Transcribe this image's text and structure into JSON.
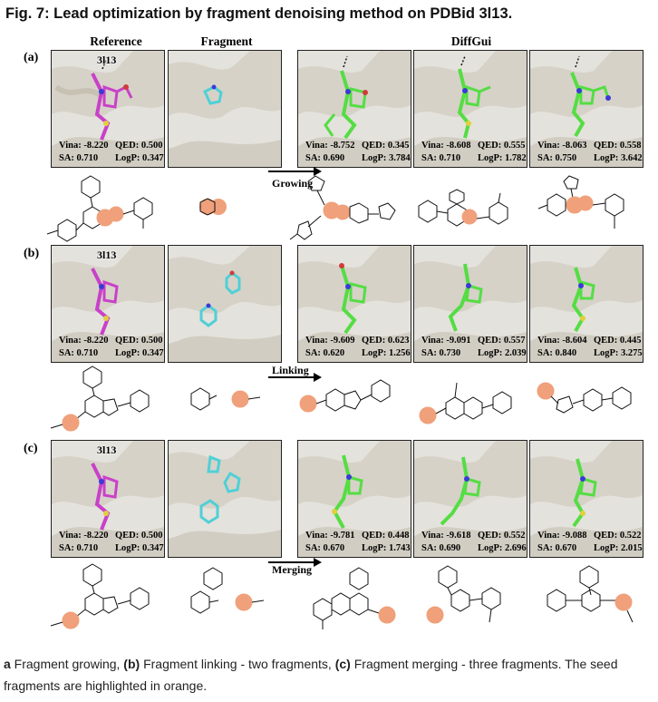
{
  "figure": {
    "title": "Fig. 7: Lead optimization by fragment denoising method on PDBid 3l13.",
    "column_headers": {
      "reference": "Reference",
      "fragment": "Fragment",
      "diffgui": "DiffGui"
    },
    "pdb_id": "3l13"
  },
  "rows": [
    {
      "label": "(a)",
      "method": "Growing",
      "reference": {
        "line1a": "Vina: -8.220",
        "line1b": "QED: 0.500",
        "line2a": "SA: 0.710",
        "line2b": "LogP: 0.347"
      },
      "generated": [
        {
          "line1a": "Vina: -8.752",
          "line1b": "QED: 0.345",
          "line2a": "SA: 0.690",
          "line2b": "LogP: 3.784"
        },
        {
          "line1a": "Vina: -8.608",
          "line1b": "QED: 0.555",
          "line2a": "SA: 0.710",
          "line2b": "LogP: 1.782"
        },
        {
          "line1a": "Vina: -8.063",
          "line1b": "QED: 0.558",
          "line2a": "SA: 0.750",
          "line2b": "LogP: 3.642"
        }
      ]
    },
    {
      "label": "(b)",
      "method": "Linking",
      "reference": {
        "line1a": "Vina: -8.220",
        "line1b": "QED: 0.500",
        "line2a": "SA: 0.710",
        "line2b": "LogP: 0.347"
      },
      "generated": [
        {
          "line1a": "Vina: -9.609",
          "line1b": "QED: 0.623",
          "line2a": "SA: 0.620",
          "line2b": "LogP: 1.256"
        },
        {
          "line1a": "Vina: -9.091",
          "line1b": "QED: 0.557",
          "line2a": "SA: 0.730",
          "line2b": "LogP: 2.039"
        },
        {
          "line1a": "Vina: -8.604",
          "line1b": "QED: 0.445",
          "line2a": "SA: 0.840",
          "line2b": "LogP: 3.275"
        }
      ]
    },
    {
      "label": "(c)",
      "method": "Merging",
      "reference": {
        "line1a": "Vina: -8.220",
        "line1b": "QED: 0.500",
        "line2a": "SA: 0.710",
        "line2b": "LogP: 0.347"
      },
      "generated": [
        {
          "line1a": "Vina: -9.781",
          "line1b": "QED: 0.448",
          "line2a": "SA: 0.670",
          "line2b": "LogP: 1.743"
        },
        {
          "line1a": "Vina: -9.618",
          "line1b": "QED: 0.552",
          "line2a": "SA: 0.690",
          "line2b": "LogP: 2.696"
        },
        {
          "line1a": "Vina: -9.088",
          "line1b": "QED: 0.522",
          "line2a": "SA: 0.670",
          "line2b": "LogP: 2.015"
        }
      ]
    }
  ],
  "caption": {
    "a_tag": "a",
    "a_text": " Fragment growing, ",
    "b_tag": "(b)",
    "b_text": " Fragment linking - two fragments, ",
    "c_tag": "(c)",
    "c_text": " Fragment merging - three fragments. The seed fragments are highlighted in orange."
  },
  "colors": {
    "reference_ligand": "#c940c9",
    "fragment": "#4fd0d6",
    "generated": "#55dd44",
    "seed_highlight": "#f0a07a",
    "protein_bg": "#e4e2dc"
  }
}
